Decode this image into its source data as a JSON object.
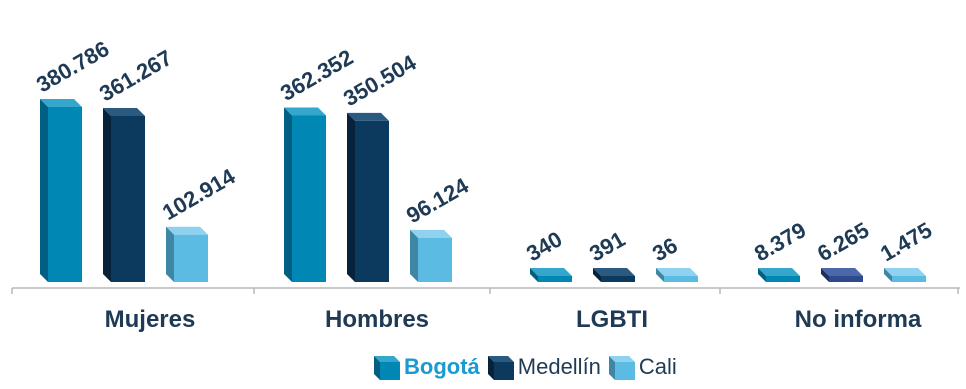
{
  "chart_data": {
    "type": "bar",
    "categories": [
      "Mujeres",
      "Hombres",
      "LGBTI",
      "No informa"
    ],
    "series": [
      {
        "name": "Bogotá",
        "values": [
          380786,
          362352,
          340,
          8379
        ]
      },
      {
        "name": "Medellín",
        "values": [
          361267,
          350504,
          391,
          6265
        ]
      },
      {
        "name": "Cali",
        "values": [
          102914,
          96124,
          36,
          1475
        ]
      }
    ],
    "data_labels": [
      [
        "380.786",
        "361.267",
        "102.914"
      ],
      [
        "362.352",
        "350.504",
        "96.124"
      ],
      [
        "340",
        "391",
        "36"
      ],
      [
        "8.379",
        "6.265",
        "1.475"
      ]
    ],
    "legend": [
      "Bogotá",
      "Medellín",
      "Cali"
    ],
    "legend_position": "bottom",
    "grid": false,
    "colors": {
      "Bogotá": {
        "front": "#0087b4",
        "side": "#005f82",
        "top": "#35a6cc"
      },
      "Medellín": {
        "front": "#0c3a5e",
        "side": "#06233b",
        "top": "#2a5a80"
      },
      "Cali": {
        "front": "#5cbbe3",
        "side": "#3e86a4",
        "top": "#8fd2ef"
      },
      "no_informa_medellin": {
        "front": "#2c4a8c",
        "side": "#1b2f5c",
        "top": "#4a68aa"
      }
    }
  }
}
